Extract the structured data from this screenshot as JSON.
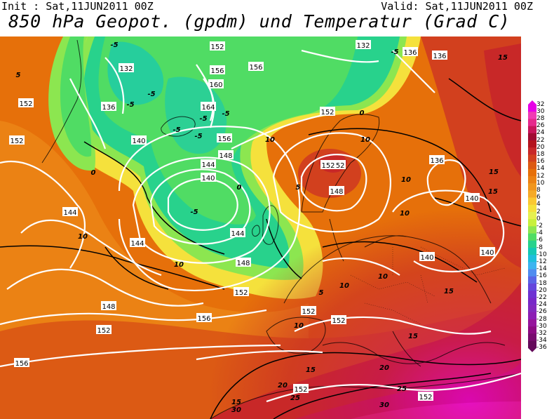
{
  "header": {
    "init": "Init : Sat,11JUN2011 00Z",
    "valid": "Valid: Sat,11JUN2011 00Z",
    "title": "850 hPa Geopot. (gpdm) und Temperatur (Grad C)"
  },
  "legend": {
    "ticks": [
      "32",
      "30",
      "28",
      "26",
      "24",
      "22",
      "20",
      "18",
      "16",
      "14",
      "12",
      "10",
      "8",
      "6",
      "4",
      "2",
      "0",
      "-2",
      "-4",
      "-6",
      "-8",
      "-10",
      "-12",
      "-14",
      "-16",
      "-18",
      "-20",
      "-22",
      "-24",
      "-26",
      "-28",
      "-30",
      "-32",
      "-34",
      "-36"
    ],
    "colors": [
      "#e600e6",
      "#f03cb4",
      "#e6288c",
      "#c8145a",
      "#a00a32",
      "#b4141e",
      "#c82828",
      "#d2401e",
      "#dc5a14",
      "#e6700a",
      "#eb8214",
      "#f0961e",
      "#f5aa28",
      "#fac832",
      "#f5e13c",
      "#e6f050",
      "#c8f03c",
      "#8ce650",
      "#50dc64",
      "#28d28c",
      "#14c8b4",
      "#1ebedc",
      "#3cb4f0",
      "#508cf0",
      "#5a64e6",
      "#6446dc",
      "#6e32d2",
      "#7828c8",
      "#8228be",
      "#8c1eb4",
      "#96149c",
      "#8c0a82",
      "#780a6e",
      "#640a5a"
    ]
  },
  "geopotential_labels": [
    "132",
    "136",
    "132",
    "136",
    "152",
    "156",
    "156",
    "160",
    "164",
    "156",
    "152",
    "148",
    "144",
    "140",
    "136",
    "152",
    "152",
    "140",
    "144",
    "144",
    "152",
    "148",
    "144",
    "148",
    "152",
    "156",
    "156",
    "152",
    "152",
    "140",
    "140",
    "140",
    "136",
    "152",
    "148",
    "152",
    "152",
    "152"
  ],
  "temperature_labels": [
    "-5",
    "-5",
    "-5",
    "-5",
    "-5",
    "-5",
    "-5",
    "-5",
    "-5",
    "0",
    "0",
    "0",
    "5",
    "5",
    "5",
    "10",
    "10",
    "10",
    "10",
    "10",
    "10",
    "10",
    "10",
    "10",
    "15",
    "15",
    "15",
    "15",
    "15",
    "15",
    "15",
    "20",
    "20",
    "25",
    "25",
    "30",
    "30"
  ]
}
